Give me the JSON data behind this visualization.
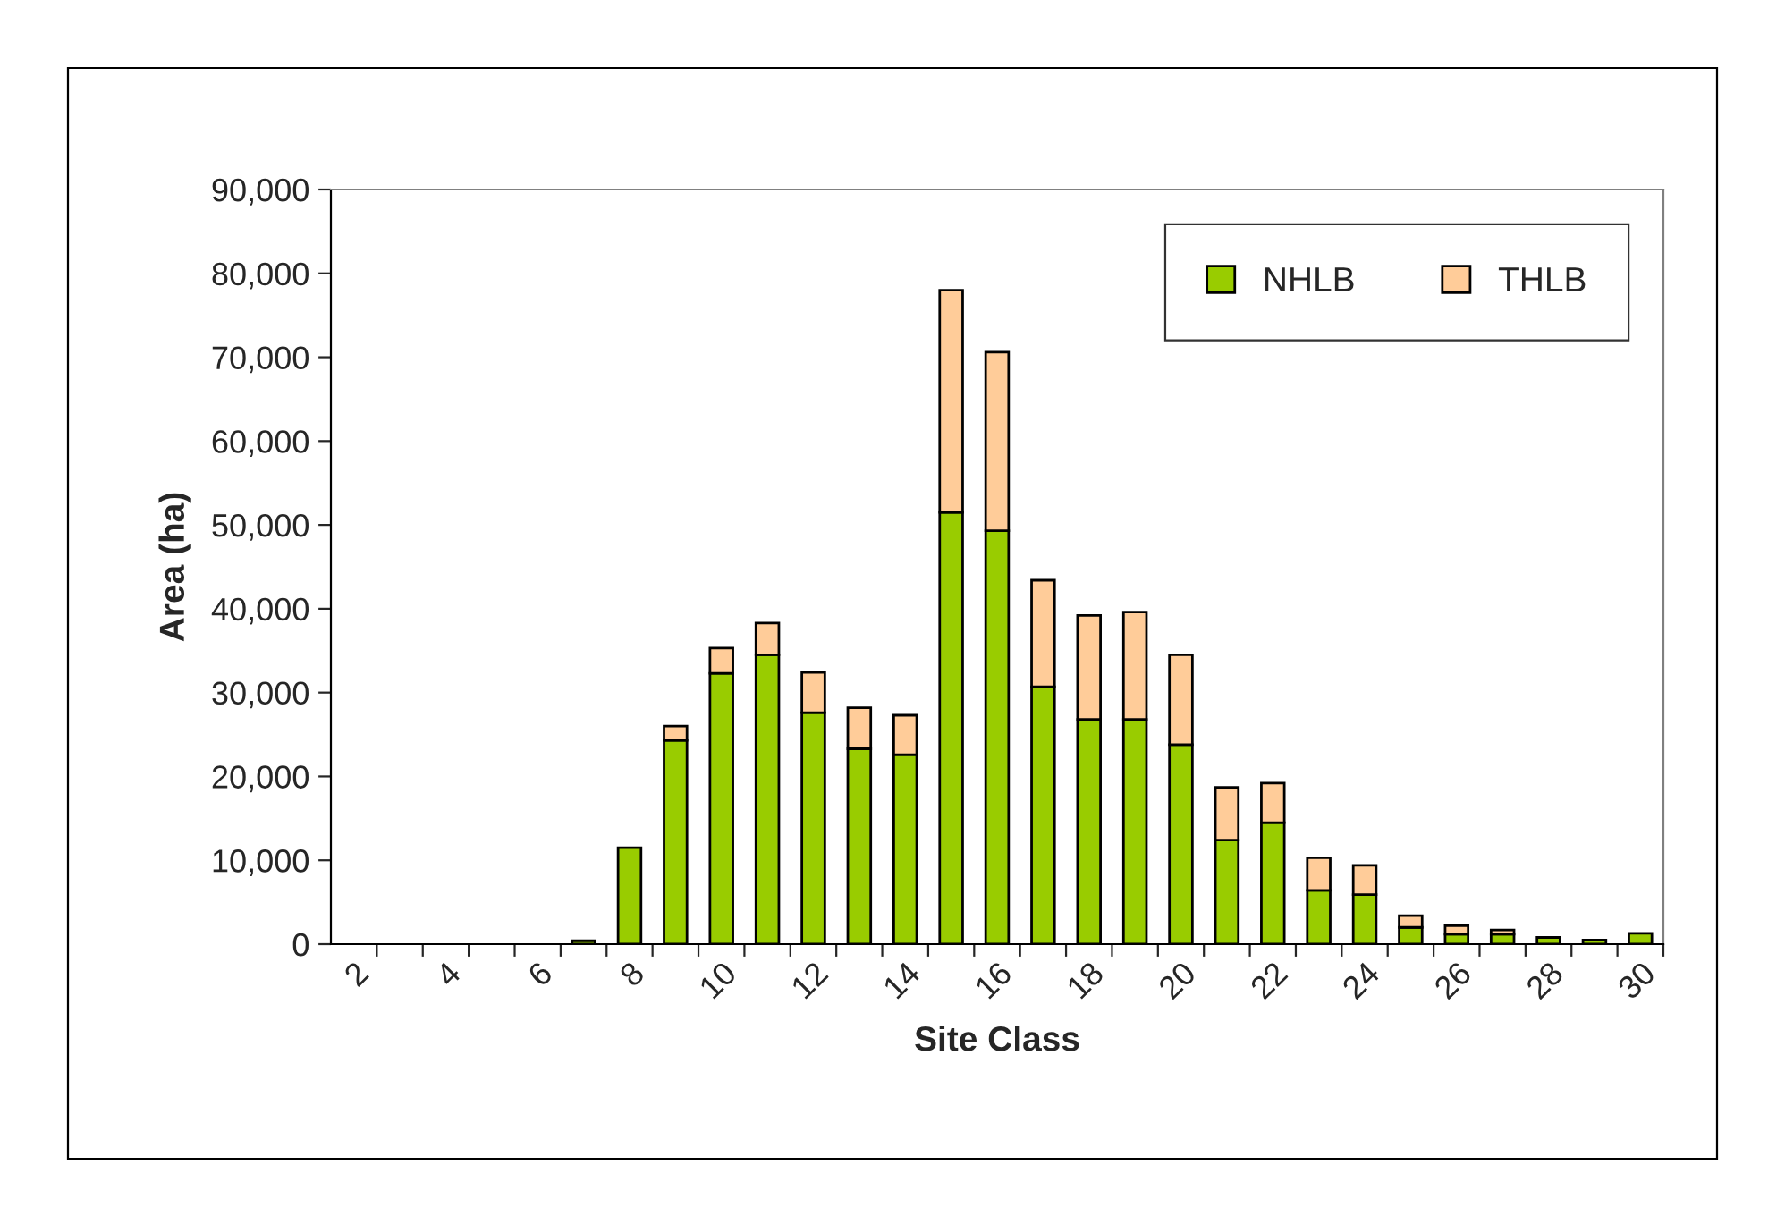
{
  "chart_data": {
    "type": "bar",
    "stacked": true,
    "xlabel": "Site Class",
    "ylabel": "Area (ha)",
    "categories": [
      "2",
      null,
      "4",
      null,
      "6",
      null,
      "8",
      null,
      "10",
      null,
      "12",
      null,
      "14",
      null,
      "16",
      null,
      "18",
      null,
      "20",
      null,
      "22",
      null,
      "24",
      null,
      "26",
      null,
      "28",
      null,
      "30"
    ],
    "series": [
      {
        "name": "NHLB",
        "color": "#99cc00",
        "values": [
          null,
          null,
          null,
          null,
          null,
          400,
          11500,
          24300,
          32300,
          34500,
          27600,
          23300,
          22600,
          51500,
          49300,
          30700,
          26800,
          26800,
          23800,
          12400,
          14500,
          6400,
          5900,
          2000,
          1200,
          1200,
          800,
          500,
          1300
        ]
      },
      {
        "name": "THLB",
        "color": "#ffcc99",
        "values": [
          null,
          null,
          null,
          null,
          null,
          null,
          null,
          1700,
          3000,
          3800,
          4800,
          4900,
          4700,
          26500,
          21300,
          12700,
          12400,
          12800,
          10700,
          6300,
          4700,
          3900,
          3500,
          1400,
          1000,
          500,
          null,
          null,
          null
        ]
      }
    ],
    "ylim": [
      0,
      90000
    ],
    "yticks": [
      {
        "value": 0,
        "label": "0"
      },
      {
        "value": 10000,
        "label": "10,000"
      },
      {
        "value": 20000,
        "label": "20,000"
      },
      {
        "value": 30000,
        "label": "30,000"
      },
      {
        "value": 40000,
        "label": "40,000"
      },
      {
        "value": 50000,
        "label": "50,000"
      },
      {
        "value": 60000,
        "label": "60,000"
      },
      {
        "value": 70000,
        "label": "70,000"
      },
      {
        "value": 80000,
        "label": "80,000"
      },
      {
        "value": 90000,
        "label": "90,000"
      }
    ],
    "grid": false,
    "legend": "top right"
  }
}
